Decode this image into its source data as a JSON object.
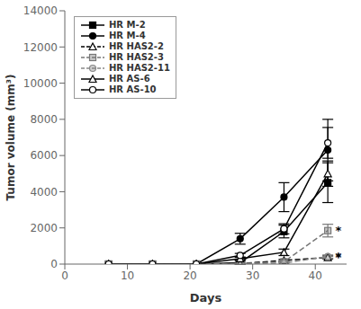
{
  "chart_data": {
    "type": "line",
    "x": [
      7,
      14,
      21,
      28,
      35,
      42
    ],
    "xlabel": "Days",
    "ylabel": "Tumor volume (mm³)",
    "xlim": [
      0,
      45
    ],
    "ylim": [
      0,
      14000
    ],
    "xticks": [
      0,
      10,
      20,
      30,
      40
    ],
    "yticks": [
      0,
      2000,
      4000,
      6000,
      8000,
      10000,
      12000,
      14000
    ],
    "grid": false,
    "legend": "upper left",
    "series": [
      {
        "name": "HR M-2",
        "color": "#000000",
        "marker": "square",
        "line_style": "solid",
        "values": [
          0,
          0,
          0,
          80,
          1800,
          4500
        ],
        "errors": [
          0,
          0,
          0,
          80,
          350,
          1100
        ]
      },
      {
        "name": "HR M-4",
        "color": "#000000",
        "marker": "circle",
        "line_style": "solid",
        "values": [
          0,
          0,
          0,
          1400,
          3700,
          6300
        ],
        "errors": [
          0,
          0,
          0,
          300,
          800,
          1700
        ]
      },
      {
        "name": "HR HAS2-2",
        "color": "#000000",
        "marker": "triangle-open",
        "line_style": "dashed",
        "values": [
          0,
          0,
          0,
          30,
          200,
          370
        ],
        "errors": [
          0,
          0,
          0,
          20,
          60,
          80
        ]
      },
      {
        "name": "HR HAS2-3",
        "color": "#777777",
        "marker": "square-light",
        "line_style": "dashed",
        "values": [
          0,
          0,
          0,
          25,
          130,
          1850
        ],
        "errors": [
          0,
          0,
          0,
          15,
          50,
          350
        ]
      },
      {
        "name": "HR HAS2-11",
        "color": "#888888",
        "marker": "circle-light",
        "line_style": "dashed",
        "values": [
          0,
          0,
          0,
          15,
          60,
          420
        ],
        "errors": [
          0,
          0,
          0,
          10,
          25,
          90
        ]
      },
      {
        "name": "HR AS-6",
        "color": "#000000",
        "marker": "triangle-open",
        "line_style": "solid",
        "values": [
          0,
          0,
          0,
          300,
          650,
          5000
        ],
        "errors": [
          0,
          0,
          0,
          90,
          180,
          700
        ]
      },
      {
        "name": "HR AS-10",
        "color": "#000000",
        "marker": "circle-open",
        "line_style": "solid",
        "values": [
          0,
          0,
          0,
          480,
          1950,
          6700
        ],
        "errors": [
          0,
          0,
          0,
          110,
          280,
          850
        ]
      }
    ],
    "annotations": [
      {
        "text": "*",
        "x": 43.2,
        "y": 370
      },
      {
        "text": "*",
        "x": 43.2,
        "y": 1850
      },
      {
        "text": "*",
        "x": 43.2,
        "y": 420
      }
    ]
  }
}
